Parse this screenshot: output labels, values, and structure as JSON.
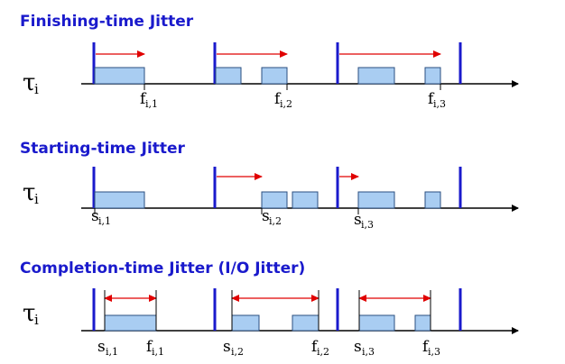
{
  "panels": [
    {
      "title": "Finishing-time Jitter",
      "task": {
        "symbol": "τ",
        "sub": "i"
      },
      "labels": [
        {
          "base": "f",
          "sub": "i,1"
        },
        {
          "base": "f",
          "sub": "i,2"
        },
        {
          "base": "f",
          "sub": "i,3"
        }
      ]
    },
    {
      "title": "Starting-time Jitter",
      "task": {
        "symbol": "τ",
        "sub": "i"
      },
      "labels": [
        {
          "base": "s",
          "sub": "i,1"
        },
        {
          "base": "s",
          "sub": "i,2"
        },
        {
          "base": "s",
          "sub": "i,3"
        }
      ]
    },
    {
      "title": "Completion-time Jitter (I/O Jitter)",
      "task": {
        "symbol": "τ",
        "sub": "i"
      },
      "labels": [
        {
          "base": "s",
          "sub": "i,1"
        },
        {
          "base": "f",
          "sub": "i,1"
        },
        {
          "base": "s",
          "sub": "i,2"
        },
        {
          "base": "f",
          "sub": "i,2"
        },
        {
          "base": "s",
          "sub": "i,3"
        },
        {
          "base": "f",
          "sub": "i,3"
        }
      ]
    }
  ],
  "colors": {
    "title": "#1a1acc",
    "period_line": "#1a1acc",
    "job_fill": "#a9cdf2",
    "job_stroke": "#2b4f80",
    "arrow": "#e00000",
    "axis": "#000000"
  }
}
